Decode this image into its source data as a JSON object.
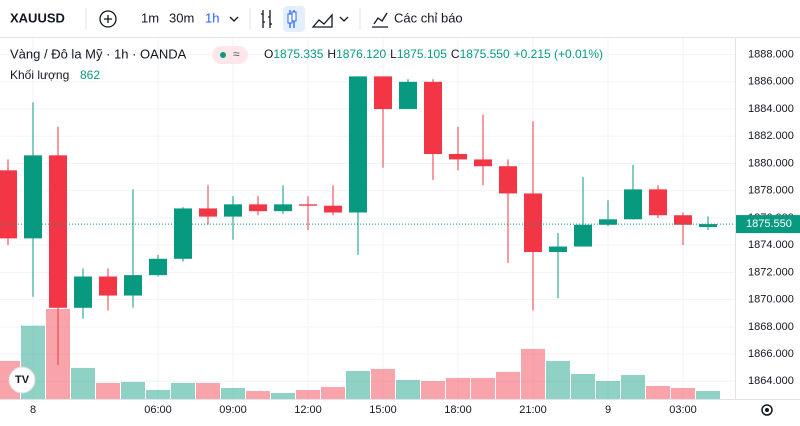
{
  "toolbar": {
    "symbol": "XAUUSD",
    "intervals": [
      "1m",
      "30m",
      "1h"
    ],
    "indicators": "Các chỉ báo"
  },
  "legend": {
    "title": "Vàng / Đô la Mỹ · 1h · OANDA",
    "o_label": "O",
    "o": "1875.335",
    "h_label": "H",
    "h": "1876.120",
    "l_label": "L",
    "l": "1875.105",
    "c_label": "C",
    "c": "1875.550",
    "change": "+0.215 (+0.01%)",
    "volume_label": "Khối lượng"
  },
  "chart_data": {
    "type": "candlestick",
    "categories": [
      null,
      "8",
      null,
      null,
      null,
      null,
      "06:00",
      null,
      null,
      "09:00",
      null,
      null,
      "12:00",
      null,
      null,
      "15:00",
      null,
      null,
      "18:00",
      null,
      null,
      "21:00",
      null,
      null,
      "9",
      null,
      null,
      "03:00",
      null
    ],
    "open": [
      1879.5,
      1874.5,
      1880.6,
      1869.4,
      1871.7,
      1870.3,
      1871.8,
      1873.0,
      1876.7,
      1876.1,
      1877.0,
      1876.5,
      1877.0,
      1876.9,
      1876.4,
      1886.4,
      1884.0,
      1886.0,
      1880.7,
      1880.3,
      1879.8,
      1877.8,
      1873.5,
      1873.9,
      1875.5,
      1875.9,
      1878.1,
      1876.2,
      1875.335
    ],
    "high": [
      1880.3,
      1884.5,
      1882.7,
      1872.3,
      1872.3,
      1878.1,
      1873.3,
      1876.8,
      1878.4,
      1877.6,
      1877.6,
      1878.4,
      1877.6,
      1878.4,
      1886.4,
      1886.4,
      1886.2,
      1886.2,
      1882.7,
      1883.6,
      1880.3,
      1883.1,
      1874.9,
      1879.0,
      1877.3,
      1879.9,
      1878.4,
      1876.4,
      1876.12
    ],
    "low": [
      1874.0,
      1870.2,
      1865.2,
      1868.6,
      1869.2,
      1869.4,
      1871.7,
      1872.8,
      1875.5,
      1874.4,
      1876.2,
      1876.3,
      1875.1,
      1876.2,
      1873.3,
      1879.7,
      1884.0,
      1878.8,
      1879.5,
      1878.4,
      1872.7,
      1869.2,
      1870.1,
      1873.9,
      1875.4,
      1875.9,
      1876.0,
      1874.0,
      1875.105
    ],
    "close": [
      1874.5,
      1880.6,
      1869.4,
      1871.7,
      1870.3,
      1871.8,
      1873.0,
      1876.7,
      1876.1,
      1877.0,
      1876.5,
      1877.0,
      1876.9,
      1876.4,
      1886.4,
      1884.0,
      1886.0,
      1880.7,
      1880.3,
      1879.8,
      1877.8,
      1873.5,
      1873.9,
      1875.5,
      1875.9,
      1878.1,
      1876.2,
      1875.5,
      1875.55
    ],
    "volume": [
      4100,
      7900,
      9700,
      3350,
      1730,
      1840,
      970,
      1730,
      1730,
      1190,
      860,
      650,
      970,
      1300,
      3020,
      3240,
      2050,
      1940,
      2270,
      2270,
      2920,
      5400,
      4100,
      2700,
      1940,
      2590,
      1400,
      1190,
      862
    ],
    "up_color": "#089981",
    "down_color": "#f23645",
    "ylim": [
      1862.7,
      1889
    ],
    "yticks": [
      {
        "value": 1864,
        "label": "1864.000"
      },
      {
        "value": 1866,
        "label": "1866.000"
      },
      {
        "value": 1868,
        "label": "1868.000"
      },
      {
        "value": 1870,
        "label": "1870.000"
      },
      {
        "value": 1872,
        "label": "1872.000"
      },
      {
        "value": 1874,
        "label": "1874.000"
      },
      {
        "value": 1876,
        "label": "1876.000"
      },
      {
        "value": 1878,
        "label": "1878.000"
      },
      {
        "value": 1880,
        "label": "1880.000"
      },
      {
        "value": 1882,
        "label": "1882.000"
      },
      {
        "value": 1884,
        "label": "1884.000"
      },
      {
        "value": 1886,
        "label": "1886.000"
      },
      {
        "value": 1888,
        "label": "1888.000"
      }
    ],
    "last_price": {
      "value": 1875.55,
      "label": "1875.550"
    }
  }
}
